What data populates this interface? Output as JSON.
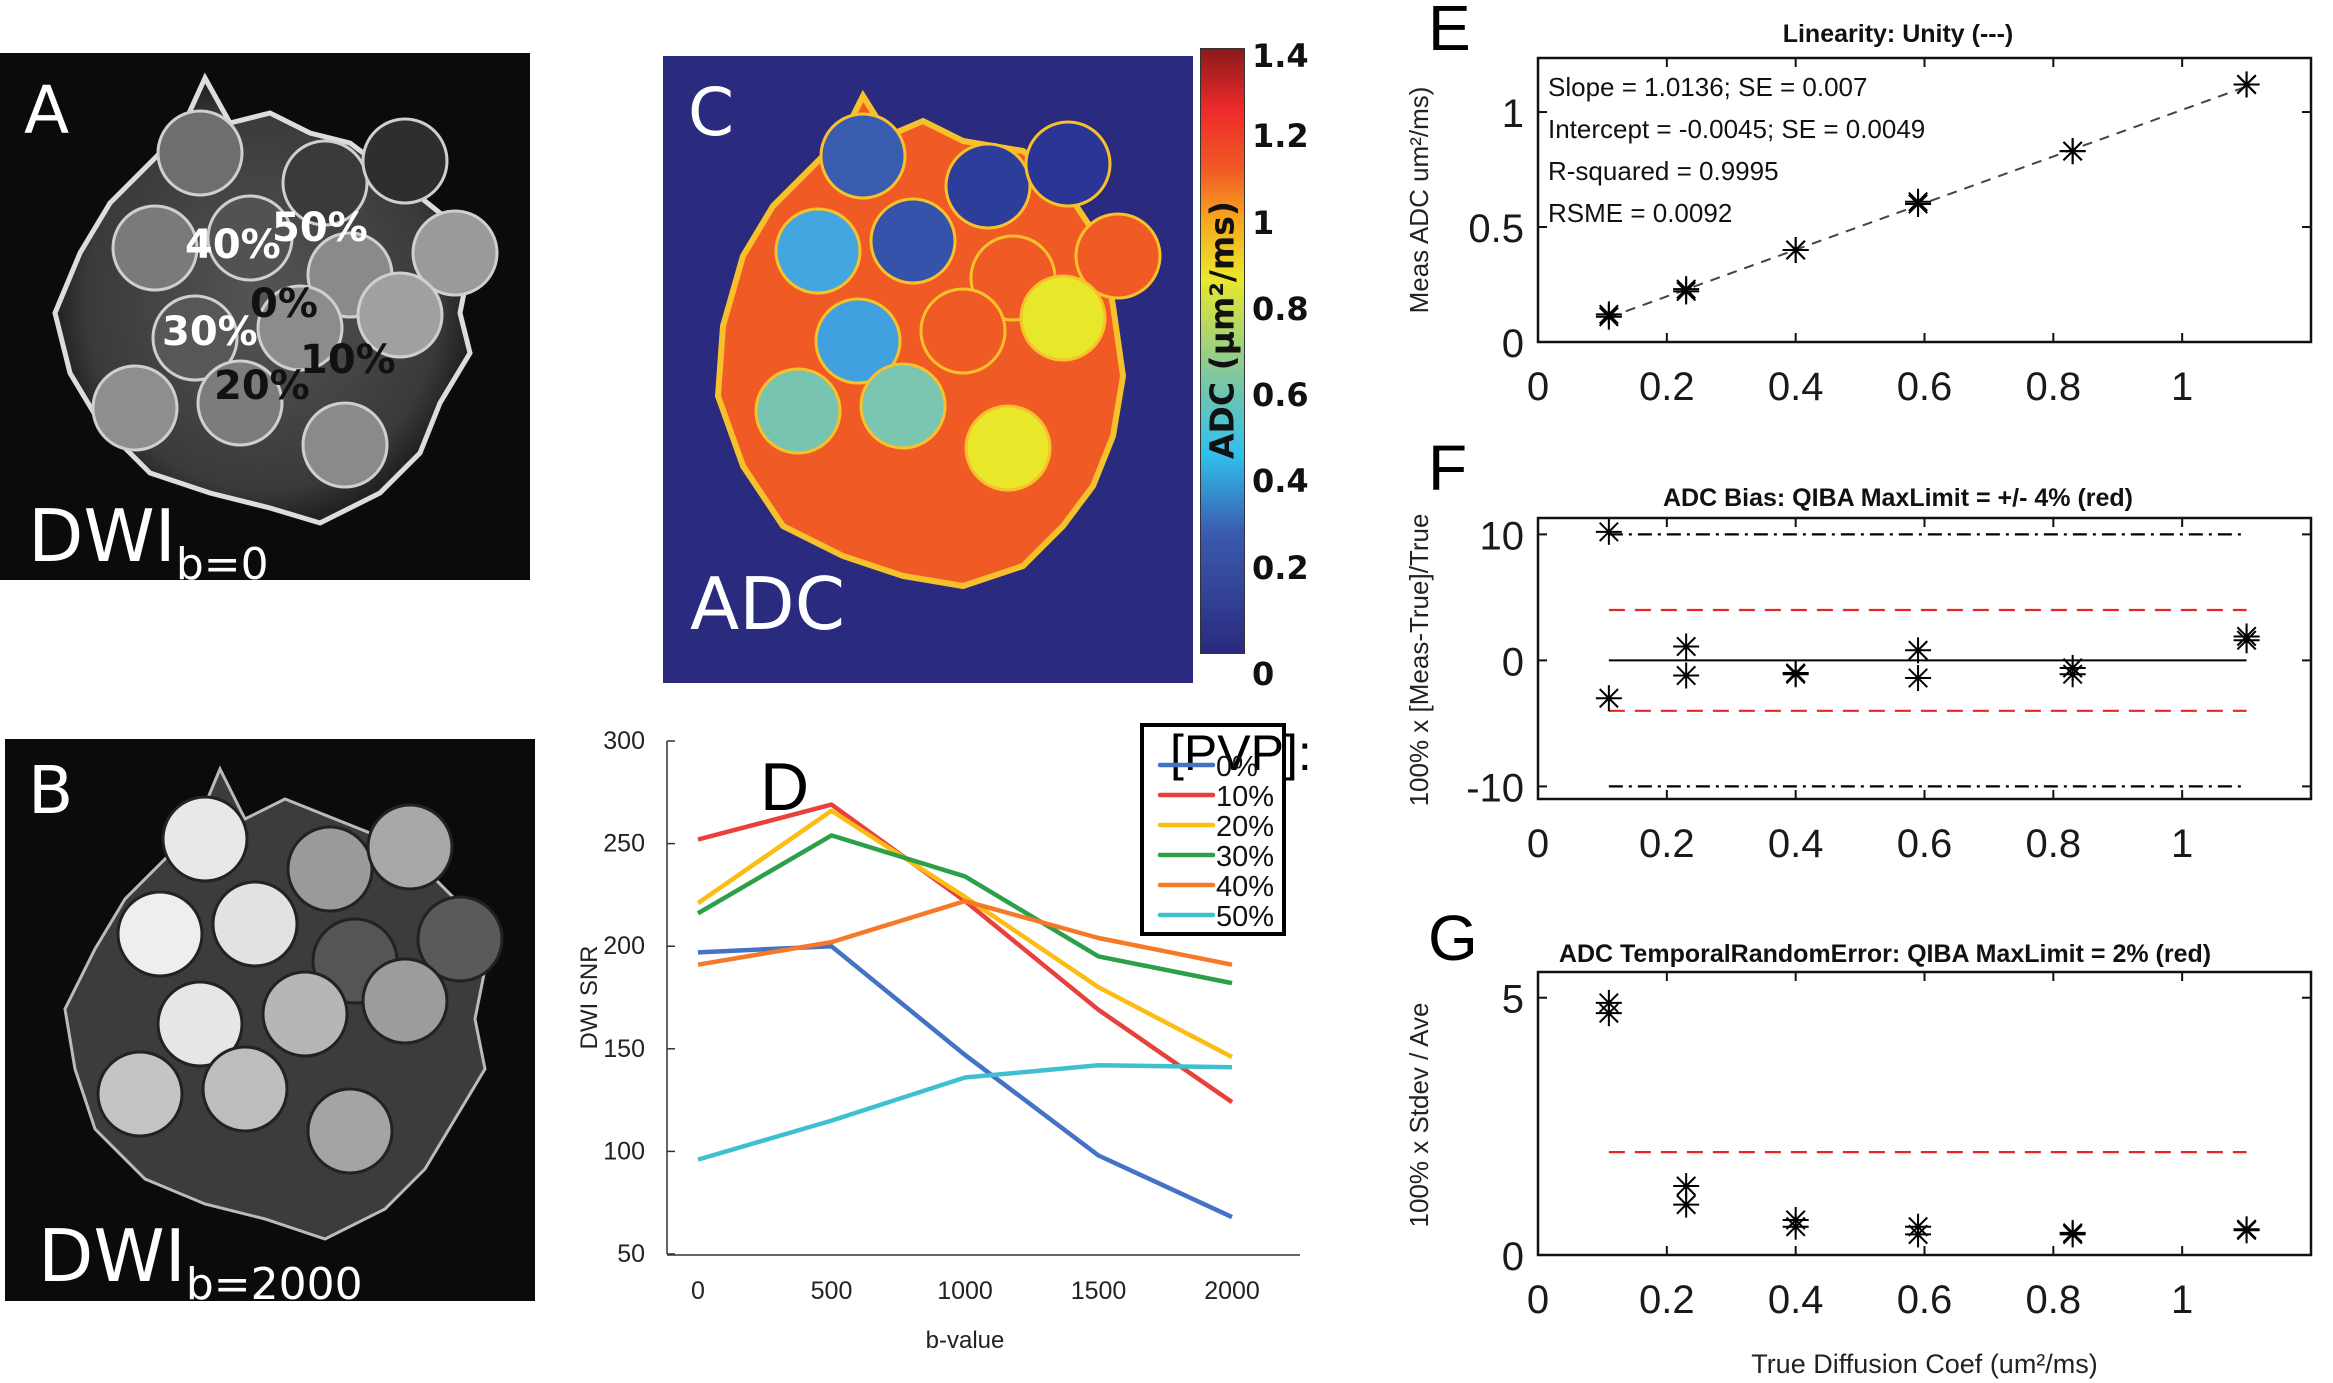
{
  "figure": {
    "panel_a": {
      "letter": "A",
      "label_main": "DWI",
      "label_sub": "b=0",
      "vial_labels": [
        {
          "text": "40%",
          "color": "#ffffff"
        },
        {
          "text": "50%",
          "color": "#ffffff"
        },
        {
          "text": "30%",
          "color": "#ffffff"
        },
        {
          "text": "0%",
          "color": "#111111"
        },
        {
          "text": "20%",
          "color": "#111111"
        },
        {
          "text": "10%",
          "color": "#111111"
        }
      ]
    },
    "panel_b": {
      "letter": "B",
      "label_main": "DWI",
      "label_sub": "b=2000"
    },
    "panel_c": {
      "letter": "C",
      "label": "ADC",
      "colorbar": {
        "label": "ADC (µm²/ms)",
        "range": [
          0,
          1.4
        ],
        "ticks": [
          "1.4",
          "1.2",
          "1",
          "0.8",
          "0.6",
          "0.4",
          "0.2",
          "0"
        ]
      }
    }
  },
  "chart_data": [
    {
      "id": "D",
      "type": "line",
      "panel_letter": "D",
      "title": "",
      "xlabel": "b-value",
      "ylabel": "DWI SNR",
      "x": [
        0,
        500,
        1000,
        1500,
        2000
      ],
      "xticks": [
        "0",
        "500",
        "1000",
        "1500",
        "2000"
      ],
      "yticks": [
        "300",
        "250",
        "200",
        "150",
        "100",
        "50"
      ],
      "ylim": [
        50,
        300
      ],
      "xlim": [
        0,
        2000
      ],
      "grid": false,
      "legend": {
        "title": "[PVP]:",
        "placement": "top-right"
      },
      "series": [
        {
          "name": "0%",
          "color": "#4472c4",
          "values": [
            197,
            200,
            147,
            98,
            68
          ]
        },
        {
          "name": "10%",
          "color": "#e8403a",
          "values": [
            252,
            269,
            222,
            169,
            124
          ]
        },
        {
          "name": "20%",
          "color": "#fbbc13",
          "values": [
            221,
            266,
            224,
            180,
            146
          ]
        },
        {
          "name": "30%",
          "color": "#2ca048",
          "values": [
            216,
            254,
            234,
            195,
            182
          ]
        },
        {
          "name": "40%",
          "color": "#f47a2a",
          "values": [
            191,
            202,
            222,
            204,
            191
          ]
        },
        {
          "name": "50%",
          "color": "#3fc0ce",
          "values": [
            96,
            115,
            136,
            142,
            141
          ]
        }
      ]
    },
    {
      "id": "E",
      "type": "scatter",
      "panel_letter": "E",
      "title": "Linearity: Unity (---)",
      "xlabel": "",
      "ylabel": "Meas ADC um²/ms)",
      "xlim": [
        0,
        1.2
      ],
      "ylim": [
        0,
        1.235
      ],
      "xticks": [
        "0",
        "0.2",
        "0.4",
        "0.6",
        "0.8",
        "1"
      ],
      "yticks": [
        "0",
        "0.5",
        "1"
      ],
      "annotations": [
        "Slope = 1.0136; SE = 0.007",
        "Intercept = -0.0045; SE = 0.0049",
        "R-squared = 0.9995",
        "RSME = 0.0092"
      ],
      "fit_line": {
        "style": "dashed",
        "x": [
          0.11,
          1.1
        ],
        "y": [
          0.107,
          1.111
        ]
      },
      "points": {
        "x": [
          0.11,
          0.11,
          0.23,
          0.23,
          0.4,
          0.4,
          0.59,
          0.59,
          0.83,
          0.83,
          1.1,
          1.1
        ],
        "y": [
          0.11,
          0.12,
          0.22,
          0.23,
          0.4,
          0.4,
          0.6,
          0.61,
          0.83,
          0.83,
          1.12,
          1.12
        ]
      }
    },
    {
      "id": "F",
      "type": "scatter",
      "panel_letter": "F",
      "title": "ADC Bias: QIBA MaxLimit = +/- 4% (red)",
      "xlabel": "",
      "ylabel": "100% x [Meas-True]/True",
      "xlim": [
        0,
        1.2
      ],
      "ylim": [
        -11,
        11.3
      ],
      "xticks": [
        "0",
        "0.2",
        "0.4",
        "0.6",
        "0.8",
        "1"
      ],
      "yticks": [
        "10",
        "0",
        "-10"
      ],
      "reference_lines": [
        {
          "y": 4,
          "style": "dashed",
          "color": "#e8242a"
        },
        {
          "y": -4,
          "style": "dashed",
          "color": "#e8242a"
        },
        {
          "y": 10,
          "style": "dashdot",
          "color": "#000000"
        },
        {
          "y": -10,
          "style": "dashdot",
          "color": "#000000"
        },
        {
          "y": 0,
          "style": "solid",
          "color": "#000000"
        }
      ],
      "points": {
        "x": [
          0.11,
          0.11,
          0.23,
          0.23,
          0.4,
          0.4,
          0.59,
          0.59,
          0.83,
          0.83,
          1.1,
          1.1
        ],
        "y": [
          10.2,
          -3.0,
          1.1,
          -1.2,
          -1.0,
          -1.1,
          0.8,
          -1.4,
          -0.6,
          -1.1,
          1.6,
          1.9
        ]
      }
    },
    {
      "id": "G",
      "type": "scatter",
      "panel_letter": "G",
      "title": "ADC TemporalRandomError: QIBA MaxLimit = 2% (red)",
      "xlabel": "True Diffusion Coef (um²/ms)",
      "ylabel": "100% x Stdev / Ave",
      "xlim": [
        0,
        1.2
      ],
      "ylim": [
        0,
        5.5
      ],
      "xticks": [
        "0",
        "0.2",
        "0.4",
        "0.6",
        "0.8",
        "1"
      ],
      "yticks": [
        "5",
        "0"
      ],
      "reference_lines": [
        {
          "y": 2,
          "style": "dashed",
          "color": "#e8242a"
        }
      ],
      "points": {
        "x": [
          0.11,
          0.11,
          0.23,
          0.23,
          0.4,
          0.4,
          0.59,
          0.59,
          0.83,
          0.83,
          1.1,
          1.1
        ],
        "y": [
          4.9,
          4.7,
          1.34,
          0.98,
          0.68,
          0.55,
          0.55,
          0.4,
          0.4,
          0.43,
          0.5,
          0.48
        ]
      }
    }
  ]
}
